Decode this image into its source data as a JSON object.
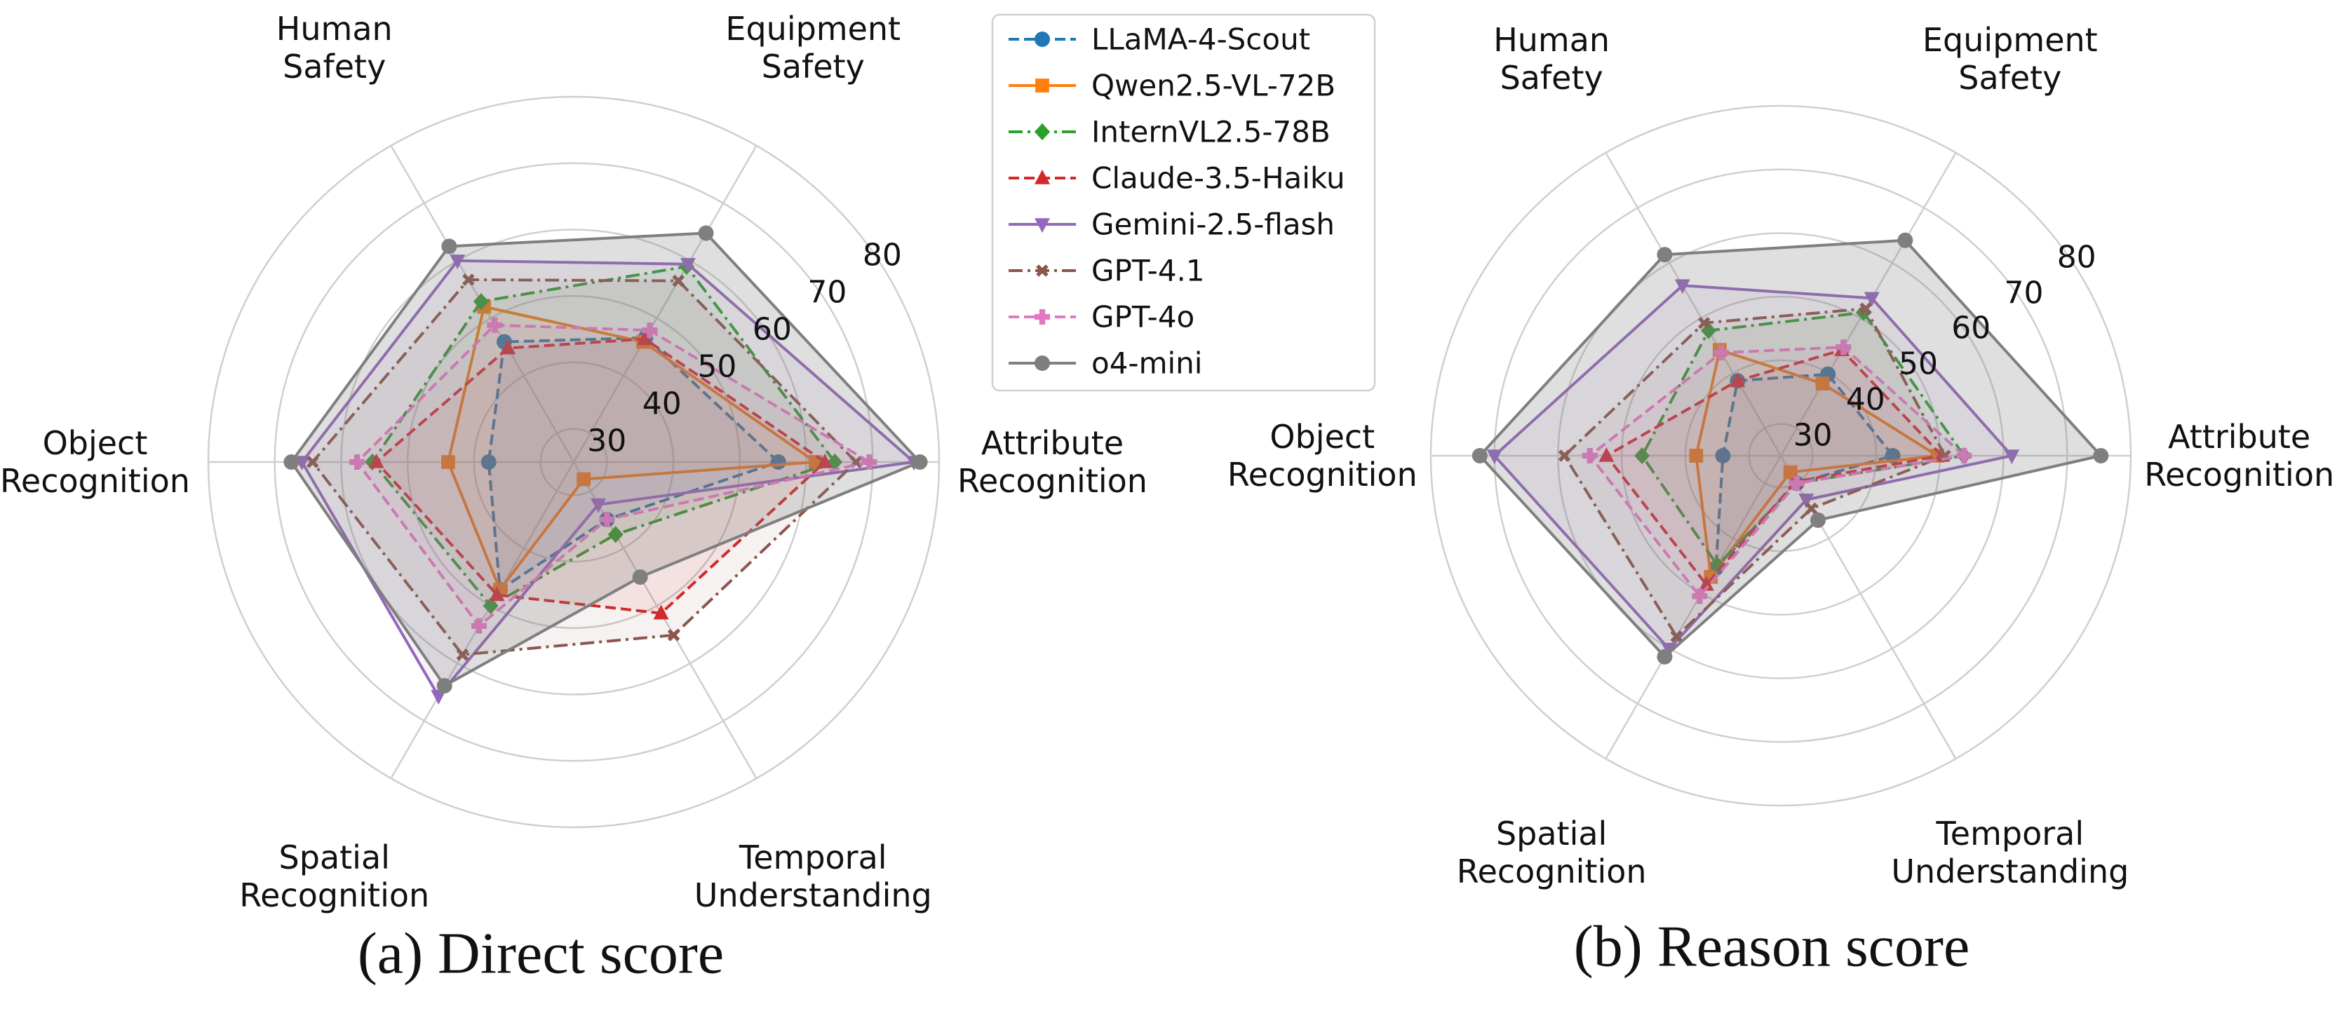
{
  "chart_data": [
    {
      "type": "radar",
      "title": "(a) Direct score",
      "categories": [
        "Attribute\nRecognition",
        "Equipment\nSafety",
        "Human\nSafety",
        "Object\nRecognition",
        "Spatial\nRecognition",
        "Temporal\nUnderstanding"
      ],
      "ylim": [
        25,
        80
      ],
      "yticks": [
        30,
        40,
        50,
        60,
        70,
        80
      ],
      "grid": true,
      "series": [
        {
          "name": "LLaMA-4-Scout",
          "color": "#1f77b4",
          "marker": "circle",
          "linestyle": "dashed",
          "values": [
            55.8,
            46.6,
            45.9,
            37.8,
            47.2,
            35
          ]
        },
        {
          "name": "Qwen2.5-VL-72B",
          "color": "#ff7f0e",
          "marker": "square",
          "linestyle": "solid",
          "values": [
            61.4,
            45.9,
            52,
            43.9,
            47.2,
            28
          ]
        },
        {
          "name": "InternVL2.5-78B",
          "color": "#2ca02c",
          "marker": "diamond",
          "linestyle": "dashdot",
          "values": [
            64.3,
            59,
            52.9,
            55.3,
            50,
            37.6
          ]
        },
        {
          "name": "Claude-3.5-Haiku",
          "color": "#d62728",
          "marker": "triangle-up",
          "linestyle": "dashed",
          "values": [
            62.8,
            46.4,
            44.8,
            54.7,
            48.1,
            51.3
          ]
        },
        {
          "name": "Gemini-2.5-flash",
          "color": "#9467bd",
          "marker": "triangle-down",
          "linestyle": "solid",
          "values": [
            76.2,
            59.4,
            60,
            65.9,
            65.7,
            32.4
          ]
        },
        {
          "name": "GPT-4.1",
          "color": "#8c564b",
          "marker": "x",
          "linestyle": "dashdot",
          "values": [
            67.5,
            56.5,
            56.7,
            64.3,
            58.5,
            55.1
          ]
        },
        {
          "name": "GPT-4o",
          "color": "#e377c2",
          "marker": "plus",
          "linestyle": "dashed",
          "values": [
            69.5,
            47.9,
            48.8,
            57.6,
            53.5,
            35
          ]
        },
        {
          "name": "o4-mini",
          "color": "#7f7f7f",
          "marker": "circle",
          "linestyle": "solid",
          "values": [
            77.1,
            64.8,
            62.5,
            67.5,
            63.9,
            45
          ]
        }
      ]
    },
    {
      "type": "radar",
      "title": "(b) Reason score",
      "categories": [
        "Attribute\nRecognition",
        "Equipment\nSafety",
        "Human\nSafety",
        "Object\nRecognition",
        "Spatial\nRecognition",
        "Temporal\nUnderstanding"
      ],
      "ylim": [
        25,
        80
      ],
      "yticks": [
        30,
        40,
        50,
        60,
        70,
        80
      ],
      "grid": true,
      "series": [
        {
          "values": [
            42.6,
            39.8,
            38.6,
            34.1,
            45.4,
            30
          ]
        },
        {
          "values": [
            49.6,
            38.1,
            44.2,
            38.3,
            47,
            28
          ]
        },
        {
          "values": [
            53.8,
            51,
            47.7,
            46.8,
            44.9,
            30
          ]
        },
        {
          "values": [
            50.3,
            44.2,
            38.6,
            52.4,
            48.4,
            29.7
          ]
        },
        {
          "values": [
            61.3,
            53.6,
            55.9,
            70,
            60.1,
            33
          ]
        },
        {
          "values": [
            50.8,
            51.7,
            49.1,
            59,
            57.8,
            34.6
          ]
        },
        {
          "values": [
            53.8,
            44.7,
            43.7,
            55,
            50.5,
            30
          ]
        },
        {
          "values": [
            75.3,
            64.1,
            61.5,
            72.3,
            61.5,
            36.7
          ]
        }
      ]
    }
  ]
}
